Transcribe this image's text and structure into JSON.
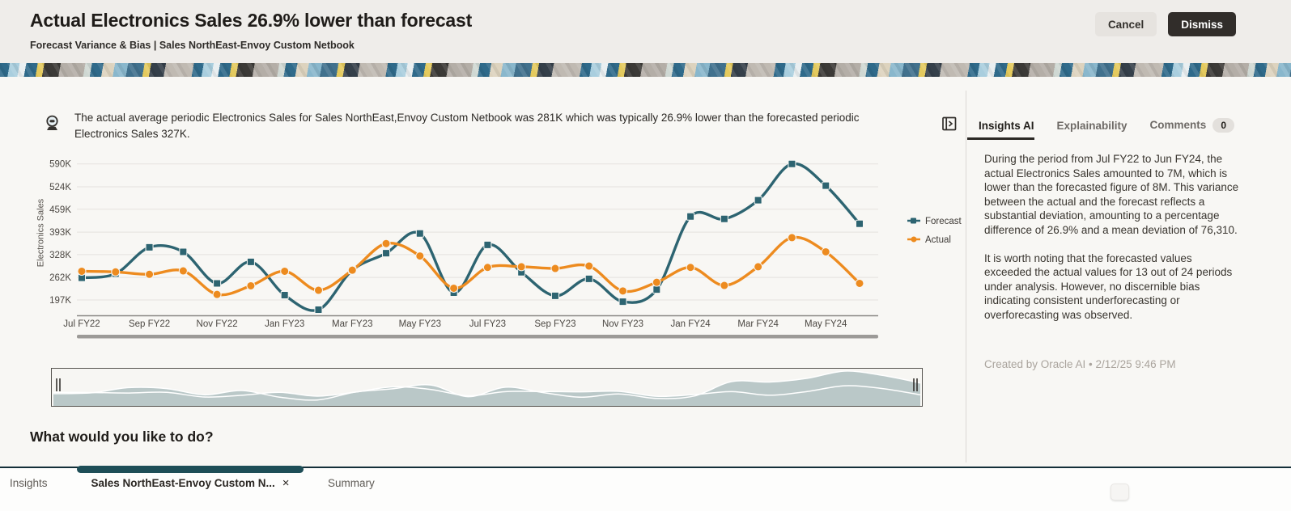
{
  "header": {
    "title": "Actual Electronics Sales 26.9% lower than forecast",
    "subtitle": "Forecast Variance & Bias | Sales NorthEast-Envoy Custom Netbook",
    "cancel_label": "Cancel",
    "dismiss_label": "Dismiss"
  },
  "insight": {
    "description": "The actual average periodic Electronics Sales for Sales NorthEast,Envoy Custom Netbook was 281K which was typically 26.9% lower than the forecasted periodic Electronics Sales 327K."
  },
  "chart_data": {
    "type": "line",
    "ylabel": "Electronics Sales",
    "x": [
      "Jul FY22",
      "Aug FY22",
      "Sep FY22",
      "Oct FY22",
      "Nov FY22",
      "Dec FY22",
      "Jan FY23",
      "Feb FY23",
      "Mar FY23",
      "Apr FY23",
      "May FY23",
      "Jun FY23",
      "Jul FY23",
      "Aug FY23",
      "Sep FY23",
      "Oct FY23",
      "Nov FY23",
      "Dec FY23",
      "Jan FY24",
      "Feb FY24",
      "Mar FY24",
      "Apr FY24",
      "May FY24",
      "Jun FY24"
    ],
    "x_tick_labels": [
      "Jul FY22",
      "Sep FY22",
      "Nov FY22",
      "Jan FY23",
      "Mar FY23",
      "May FY23",
      "Jul FY23",
      "Sep FY23",
      "Nov FY23",
      "Jan FY24",
      "Mar FY24",
      "May FY24"
    ],
    "y_ticks": [
      {
        "v": 197000,
        "label": "197K"
      },
      {
        "v": 262000,
        "label": "262K"
      },
      {
        "v": 328000,
        "label": "328K"
      },
      {
        "v": 393000,
        "label": "393K"
      },
      {
        "v": 459000,
        "label": "459K"
      },
      {
        "v": 524000,
        "label": "524K"
      },
      {
        "v": 590000,
        "label": "590K"
      }
    ],
    "ylim": [
      150000,
      630000
    ],
    "grid": true,
    "legend_position": "right",
    "series": [
      {
        "name": "Forecast",
        "color": "#2d6471",
        "marker": "square",
        "values": [
          261000,
          273000,
          349000,
          336000,
          245000,
          307000,
          211000,
          169000,
          283000,
          332000,
          389000,
          218000,
          356000,
          277000,
          209000,
          258000,
          192000,
          227000,
          438000,
          431000,
          485000,
          590000,
          527000,
          417000
        ]
      },
      {
        "name": "Actual",
        "color": "#ed8b1f",
        "marker": "circle",
        "values": [
          280000,
          278000,
          271000,
          281000,
          213000,
          238000,
          280000,
          225000,
          283000,
          360000,
          324000,
          231000,
          291000,
          293000,
          288000,
          295000,
          223000,
          248000,
          291000,
          239000,
          293000,
          377000,
          336000,
          245000
        ]
      }
    ]
  },
  "prompt": {
    "heading": "What would you like to do?"
  },
  "right_panel": {
    "tabs": [
      {
        "label": "Insights AI",
        "active": true
      },
      {
        "label": "Explainability"
      },
      {
        "label": "Comments",
        "badge": "0"
      }
    ],
    "paragraphs": [
      "During the period from Jul FY22 to Jun FY24, the actual Electronics Sales amounted to 7M, which is lower than the forecasted figure of 8M. This variance between the actual and the forecast reflects a substantial deviation, amounting to a percentage difference of 26.9% and a mean deviation of 76,310.",
      "It is worth noting that the forecasted values exceeded the actual values for 13 out of 24 periods under analysis. However, no discernible bias indicating consistent underforecasting or overforecasting was observed."
    ],
    "footer": "Created by Oracle AI • 2/12/25 9:46 PM"
  },
  "bottom_tabs": [
    {
      "label": "Insights"
    },
    {
      "label": "Sales NorthEast-Envoy Custom N...",
      "close_glyph": "×",
      "active": true
    },
    {
      "label": "Summary"
    }
  ],
  "colors": {
    "forecast_teal": "#2d6471",
    "actual_orange": "#ed8b1f",
    "header_bg": "#efedea",
    "main_bg": "#f8f7f4",
    "dismiss_bg": "#312d2a",
    "tab_indicator": "#1e4e57",
    "brush_fill": "#bac8c8"
  }
}
